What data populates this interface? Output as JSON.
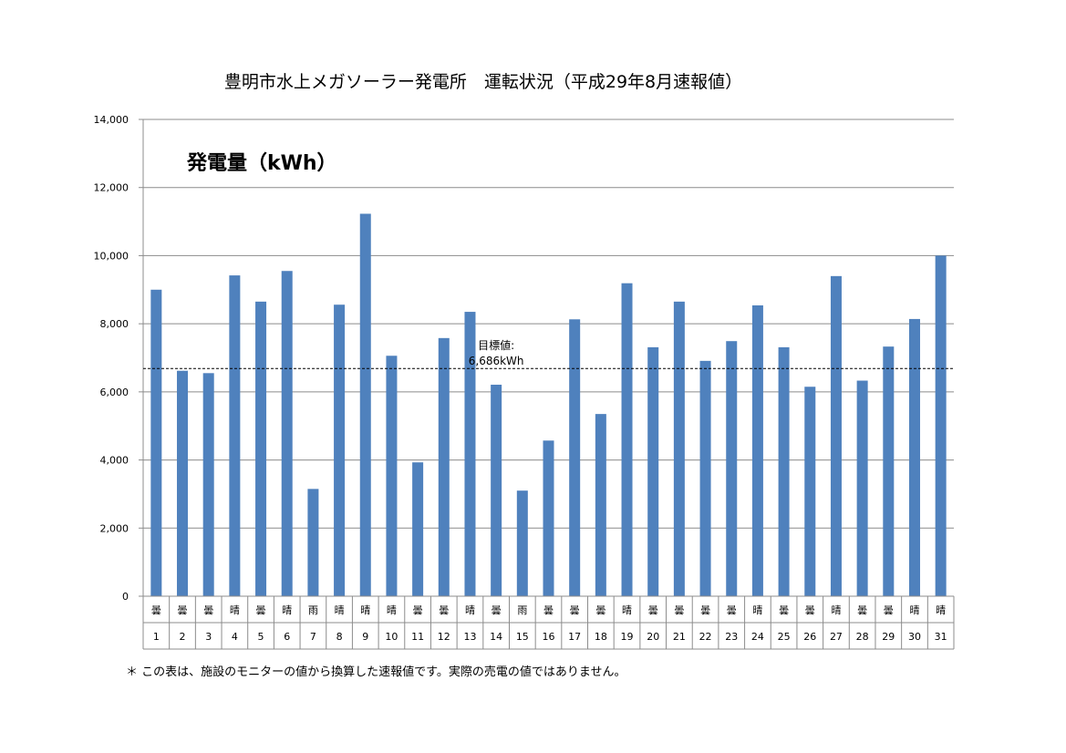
{
  "chart_data": {
    "type": "bar",
    "title": "豊明市水上メガソーラー発電所　運転状況（平成29年8月速報値）",
    "subtitle": "発電量（kWh）",
    "categories": [
      "1",
      "2",
      "3",
      "4",
      "5",
      "6",
      "7",
      "8",
      "9",
      "10",
      "11",
      "12",
      "13",
      "14",
      "15",
      "16",
      "17",
      "18",
      "19",
      "20",
      "21",
      "22",
      "23",
      "24",
      "25",
      "26",
      "27",
      "28",
      "29",
      "30",
      "31"
    ],
    "weather": [
      "曇",
      "曇",
      "曇",
      "晴",
      "曇",
      "晴",
      "雨",
      "晴",
      "晴",
      "晴",
      "曇",
      "曇",
      "晴",
      "曇",
      "雨",
      "曇",
      "曇",
      "曇",
      "晴",
      "曇",
      "曇",
      "曇",
      "曇",
      "晴",
      "曇",
      "曇",
      "晴",
      "曇",
      "曇",
      "晴",
      "晴"
    ],
    "values": [
      9000,
      6620,
      6550,
      9420,
      8650,
      9550,
      3150,
      8560,
      11230,
      7060,
      3930,
      7580,
      8350,
      6210,
      3100,
      4570,
      8130,
      5350,
      9190,
      7310,
      8650,
      6910,
      7490,
      8540,
      7310,
      6150,
      9400,
      6330,
      7330,
      8140,
      10000
    ],
    "yticks": [
      "0",
      "2,000",
      "4,000",
      "6,000",
      "8,000",
      "10,000",
      "12,000",
      "14,000"
    ],
    "ylim": [
      0,
      14000
    ],
    "grid": true,
    "bar_color": "#4f81bd",
    "target": {
      "value": 6686,
      "label_line1": "目標値:",
      "label_line2": "6,686kWh"
    },
    "footnote": "＊ この表は、施設のモニターの値から換算した速報値です。実際の売電の値ではありません。"
  }
}
